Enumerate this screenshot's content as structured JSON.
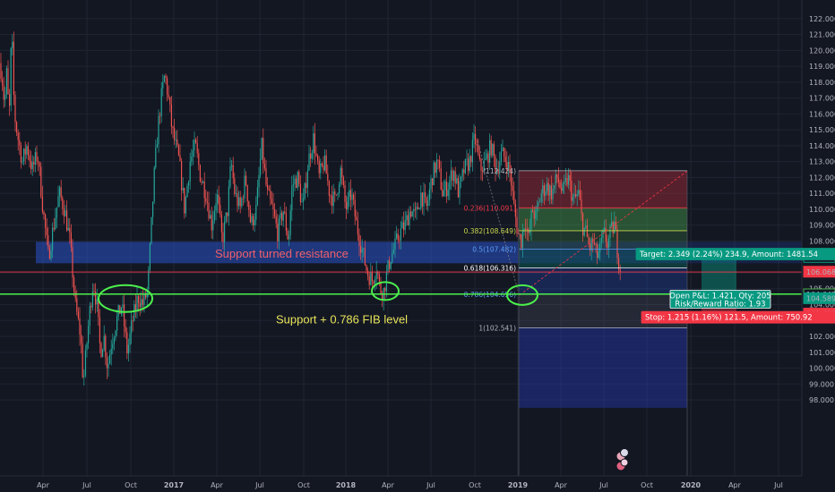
{
  "chart_data": {
    "type": "candlestick",
    "ylim": [
      97.5,
      122.5
    ],
    "x_ticks": [
      "Apr",
      "Jul",
      "Oct",
      "2017",
      "Apr",
      "Jul",
      "Oct",
      "2018",
      "Apr",
      "Jul",
      "Oct",
      "2019",
      "Apr",
      "Jul",
      "Oct",
      "2020",
      "Apr",
      "Jul"
    ],
    "y_ticks": [
      98,
      99,
      100,
      101,
      102,
      103,
      104,
      105,
      106,
      107,
      108,
      109,
      110,
      111,
      112,
      113,
      114,
      115,
      116,
      117,
      118,
      119,
      120,
      121,
      122
    ],
    "y_tick_labels": [
      "98.000",
      "99.000",
      "100.000",
      "101.000",
      "102.000",
      "103.000",
      "104.000",
      "105.000",
      "106.000",
      "107.000",
      "108.000",
      "109.000",
      "110.000",
      "111.000",
      "112.000",
      "113.000",
      "114.000",
      "115.000",
      "116.000",
      "117.000",
      "118.000",
      "119.000",
      "120.000",
      "121.000",
      "122.000"
    ],
    "price_path": [
      [
        0,
        119.2
      ],
      [
        3,
        118.0
      ],
      [
        5,
        116.5
      ],
      [
        8,
        119.0
      ],
      [
        10,
        115.0
      ],
      [
        13,
        121.5
      ],
      [
        16,
        116.0
      ],
      [
        20,
        114.5
      ],
      [
        25,
        113.0
      ],
      [
        30,
        114.0
      ],
      [
        36,
        112.5
      ],
      [
        42,
        113.5
      ],
      [
        48,
        110.0
      ],
      [
        54,
        107.0
      ],
      [
        60,
        109.0
      ],
      [
        66,
        111.0
      ],
      [
        72,
        110.0
      ],
      [
        78,
        108.0
      ],
      [
        84,
        104.0
      ],
      [
        90,
        102.0
      ],
      [
        93,
        99.0
      ],
      [
        96,
        101.0
      ],
      [
        100,
        103.5
      ],
      [
        104,
        105.5
      ],
      [
        108,
        104.0
      ],
      [
        112,
        101.0
      ],
      [
        116,
        102.0
      ],
      [
        120,
        100.0
      ],
      [
        124,
        101.5
      ],
      [
        130,
        103.0
      ],
      [
        136,
        104.0
      ],
      [
        142,
        101.0
      ],
      [
        148,
        103.0
      ],
      [
        154,
        104.5
      ],
      [
        160,
        104.0
      ],
      [
        165,
        105.0
      ],
      [
        168,
        108.0
      ],
      [
        172,
        112.0
      ],
      [
        176,
        115.0
      ],
      [
        180,
        117.0
      ],
      [
        184,
        118.5
      ],
      [
        188,
        117.0
      ],
      [
        192,
        115.0
      ],
      [
        196,
        114.0
      ],
      [
        200,
        113.0
      ],
      [
        206,
        110.0
      ],
      [
        212,
        113.0
      ],
      [
        218,
        114.0
      ],
      [
        224,
        112.0
      ],
      [
        230,
        111.0
      ],
      [
        236,
        109.0
      ],
      [
        242,
        111.0
      ],
      [
        248,
        108.0
      ],
      [
        254,
        110.0
      ],
      [
        258,
        113.0
      ],
      [
        262,
        111.0
      ],
      [
        268,
        110.0
      ],
      [
        274,
        112.0
      ],
      [
        280,
        109.0
      ],
      [
        286,
        110.0
      ],
      [
        292,
        114.0
      ],
      [
        298,
        111.0
      ],
      [
        304,
        110.0
      ],
      [
        310,
        108.5
      ],
      [
        316,
        110.0
      ],
      [
        322,
        108.0
      ],
      [
        326,
        111.5
      ],
      [
        332,
        112.0
      ],
      [
        338,
        110.0
      ],
      [
        344,
        113.0
      ],
      [
        350,
        114.5
      ],
      [
        356,
        112.0
      ],
      [
        362,
        113.0
      ],
      [
        368,
        111.0
      ],
      [
        374,
        110.5
      ],
      [
        380,
        112.5
      ],
      [
        386,
        110.0
      ],
      [
        392,
        111.0
      ],
      [
        398,
        109.0
      ],
      [
        404,
        107.5
      ],
      [
        410,
        106.0
      ],
      [
        416,
        105.5
      ],
      [
        420,
        106.5
      ],
      [
        424,
        105.0
      ],
      [
        428,
        104.8
      ],
      [
        432,
        106.0
      ],
      [
        436,
        107.0
      ],
      [
        440,
        107.5
      ],
      [
        446,
        108.5
      ],
      [
        452,
        109.0
      ],
      [
        458,
        110.0
      ],
      [
        464,
        109.5
      ],
      [
        470,
        111.0
      ],
      [
        476,
        110.0
      ],
      [
        482,
        112.0
      ],
      [
        488,
        113.0
      ],
      [
        494,
        111.0
      ],
      [
        500,
        111.5
      ],
      [
        506,
        112.5
      ],
      [
        512,
        111.0
      ],
      [
        518,
        112.5
      ],
      [
        524,
        113.0
      ],
      [
        530,
        114.5
      ],
      [
        536,
        112.5
      ],
      [
        542,
        113.0
      ],
      [
        548,
        114.0
      ],
      [
        554,
        112.5
      ],
      [
        560,
        113.5
      ],
      [
        566,
        113.0
      ],
      [
        570,
        112.0
      ],
      [
        574,
        110.0
      ],
      [
        578,
        108.5
      ],
      [
        582,
        108.0
      ],
      [
        586,
        109.5
      ],
      [
        590,
        108.0
      ],
      [
        594,
        110.0
      ],
      [
        598,
        109.5
      ],
      [
        604,
        111.0
      ],
      [
        610,
        111.5
      ],
      [
        616,
        111.0
      ],
      [
        622,
        112.0
      ],
      [
        628,
        111.0
      ],
      [
        634,
        112.0
      ],
      [
        640,
        110.5
      ],
      [
        646,
        111.0
      ],
      [
        650,
        109.0
      ],
      [
        654,
        108.5
      ],
      [
        658,
        107.5
      ],
      [
        662,
        108.0
      ],
      [
        666,
        107.0
      ],
      [
        670,
        107.5
      ],
      [
        674,
        108.5
      ],
      [
        678,
        107.8
      ],
      [
        682,
        108.6
      ],
      [
        686,
        109.0
      ],
      [
        690,
        107.0
      ],
      [
        693,
        106.0
      ]
    ],
    "annotations": {
      "support_label": "Support + 0.786 FIB level",
      "resistance_label": "Support turned resistance"
    },
    "support_zone": [
      106.6,
      107.95
    ],
    "support_line": 104.66,
    "fib_levels": [
      {
        "ratio": "0.236",
        "price": 110.091,
        "label": "0.236(110.091)",
        "color": "#f23645"
      },
      {
        "ratio": "0.382",
        "price": 108.649,
        "label": "0.382(108.649)",
        "color": "#c9d94b"
      },
      {
        "ratio": "0.5",
        "price": 107.482,
        "label": "0.5(107.482)",
        "color": "#5b9cf6"
      },
      {
        "ratio": "0.618",
        "price": 106.316,
        "label": "0.618(106.316)",
        "color": "#ffffff"
      },
      {
        "ratio": "0.786",
        "price": 104.656,
        "label": "0.786(104.656)",
        "color": "#5b9cf6"
      },
      {
        "ratio": "1",
        "price": 102.541,
        "label": "1(102.541)",
        "color": "#b2b5be"
      }
    ],
    "fib_top_label": "(112.424)",
    "fib_top_price": 112.424,
    "position": {
      "entry": 104.647,
      "target_price": 106.996,
      "stop_price": 103.432,
      "target_text": "Target: 2.349 (2.24%) 234.9, Amount: 1481.54",
      "stop_text": "Stop: 1.215 (1.16%) 121.5, Amount: 750.92",
      "pnl_text": "Open P&L: 1.421, Qty: 205",
      "rr_text": "Risk/Reward Ratio: 1.93"
    },
    "price_tags": [
      {
        "value": "106.996",
        "price": 106.996,
        "bg": "#131722",
        "fg": "#ffffff",
        "border": "#089981"
      },
      {
        "value": "106.068",
        "price": 106.068,
        "bg": "#f23645",
        "fg": "#ffffff",
        "border": "#f23645"
      },
      {
        "value": "104.647",
        "price": 104.647,
        "bg": "#131722",
        "fg": "#ffffff",
        "border": "#4caf50"
      },
      {
        "value": "104.589",
        "price": 104.4,
        "bg": "#089981",
        "fg": "#ffffff",
        "border": "#089981"
      },
      {
        "value": "103.432",
        "price": 103.432,
        "bg": "#f23645",
        "fg": "#ffffff",
        "border": "#f23645"
      }
    ],
    "colors": {
      "background": "#131722",
      "up": "#26a69a",
      "down": "#ef5350",
      "support_line": "#4cf04c",
      "zone": "#1e3a8a",
      "fib_red": "#f23645",
      "fib_green": "#4caf50"
    }
  }
}
